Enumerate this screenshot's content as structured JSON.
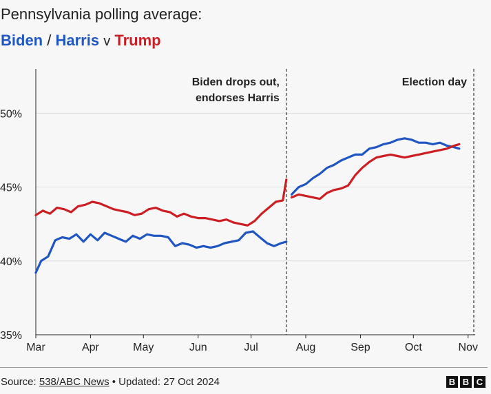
{
  "title": {
    "line1": "Pennsylvania polling average:",
    "biden": "Biden",
    "slash": "/",
    "harris": "Harris",
    "vs": "v",
    "trump": "Trump"
  },
  "footer": {
    "source_prefix": "Source: ",
    "source_link": "538/ABC News",
    "updated": " • Updated: 27 Oct 2024",
    "logo_letters": [
      "B",
      "B",
      "C"
    ]
  },
  "colors": {
    "biden_harris": "#1f56c2",
    "trump": "#cc1f24"
  },
  "chart_data": {
    "type": "line",
    "ylim": [
      35,
      53
    ],
    "xlim": [
      "2024-03-01",
      "2024-11-05"
    ],
    "y_ticks": [
      {
        "value": 35,
        "label": "35%"
      },
      {
        "value": 40,
        "label": "40%"
      },
      {
        "value": 45,
        "label": "45%"
      },
      {
        "value": 50,
        "label": "50%"
      }
    ],
    "x_ticks": [
      {
        "date": "2024-03-01",
        "label": "Mar"
      },
      {
        "date": "2024-04-01",
        "label": "Apr"
      },
      {
        "date": "2024-05-01",
        "label": "May"
      },
      {
        "date": "2024-06-01",
        "label": "Jun"
      },
      {
        "date": "2024-07-01",
        "label": "Jul"
      },
      {
        "date": "2024-08-01",
        "label": "Aug"
      },
      {
        "date": "2024-09-01",
        "label": "Sep"
      },
      {
        "date": "2024-10-01",
        "label": "Oct"
      },
      {
        "date": "2024-11-01",
        "label": "Nov"
      }
    ],
    "grid": true,
    "annotations": [
      {
        "date": "2024-07-21",
        "lines": [
          "Biden drops out,",
          "endorses Harris"
        ]
      },
      {
        "date": "2024-11-05",
        "lines": [
          "Election day"
        ]
      }
    ],
    "series": [
      {
        "color": "#1f56c2",
        "x": [
          "2024-03-01",
          "2024-03-04",
          "2024-03-08",
          "2024-03-12",
          "2024-03-16",
          "2024-03-20",
          "2024-03-24",
          "2024-03-28",
          "2024-04-01",
          "2024-04-05",
          "2024-04-09",
          "2024-04-13",
          "2024-04-17",
          "2024-04-21",
          "2024-04-25",
          "2024-04-29",
          "2024-05-03",
          "2024-05-07",
          "2024-05-11",
          "2024-05-15",
          "2024-05-19",
          "2024-05-23",
          "2024-05-27",
          "2024-05-31",
          "2024-06-04",
          "2024-06-08",
          "2024-06-12",
          "2024-06-16",
          "2024-06-20",
          "2024-06-24",
          "2024-06-28",
          "2024-07-02",
          "2024-07-06",
          "2024-07-10",
          "2024-07-14",
          "2024-07-18",
          "2024-07-21"
        ],
        "y": [
          39.2,
          40.0,
          40.3,
          41.4,
          41.6,
          41.5,
          41.8,
          41.3,
          41.8,
          41.4,
          41.9,
          41.7,
          41.5,
          41.3,
          41.7,
          41.5,
          41.8,
          41.7,
          41.7,
          41.6,
          41.0,
          41.2,
          41.1,
          40.9,
          41.0,
          40.9,
          41.0,
          41.2,
          41.3,
          41.4,
          41.9,
          42.0,
          41.6,
          41.2,
          41.0,
          41.2,
          41.3
        ]
      },
      {
        "color": "#1f56c2",
        "x": [
          "2024-07-24",
          "2024-07-28",
          "2024-08-01",
          "2024-08-05",
          "2024-08-09",
          "2024-08-13",
          "2024-08-17",
          "2024-08-21",
          "2024-08-25",
          "2024-08-29",
          "2024-09-02",
          "2024-09-06",
          "2024-09-10",
          "2024-09-14",
          "2024-09-18",
          "2024-09-22",
          "2024-09-26",
          "2024-09-30",
          "2024-10-04",
          "2024-10-08",
          "2024-10-12",
          "2024-10-16",
          "2024-10-20",
          "2024-10-24",
          "2024-10-27"
        ],
        "y": [
          44.5,
          45.0,
          45.2,
          45.6,
          45.9,
          46.3,
          46.5,
          46.8,
          47.0,
          47.2,
          47.2,
          47.6,
          47.7,
          47.9,
          48.0,
          48.2,
          48.3,
          48.2,
          48.0,
          48.0,
          47.9,
          48.0,
          47.8,
          47.7,
          47.6
        ]
      },
      {
        "color": "#cc1f24",
        "x": [
          "2024-03-01",
          "2024-03-05",
          "2024-03-09",
          "2024-03-13",
          "2024-03-17",
          "2024-03-21",
          "2024-03-25",
          "2024-03-29",
          "2024-04-02",
          "2024-04-06",
          "2024-04-10",
          "2024-04-14",
          "2024-04-18",
          "2024-04-22",
          "2024-04-26",
          "2024-04-30",
          "2024-05-04",
          "2024-05-08",
          "2024-05-12",
          "2024-05-16",
          "2024-05-20",
          "2024-05-24",
          "2024-05-28",
          "2024-06-01",
          "2024-06-05",
          "2024-06-09",
          "2024-06-13",
          "2024-06-17",
          "2024-06-21",
          "2024-06-25",
          "2024-06-29",
          "2024-07-03",
          "2024-07-07",
          "2024-07-11",
          "2024-07-15",
          "2024-07-19",
          "2024-07-21"
        ],
        "y": [
          43.1,
          43.4,
          43.2,
          43.6,
          43.5,
          43.3,
          43.7,
          43.8,
          44.0,
          43.9,
          43.7,
          43.5,
          43.4,
          43.3,
          43.1,
          43.2,
          43.5,
          43.6,
          43.4,
          43.3,
          43.0,
          43.2,
          43.0,
          42.9,
          42.9,
          42.8,
          42.7,
          42.8,
          42.6,
          42.5,
          42.4,
          42.7,
          43.2,
          43.6,
          44.0,
          44.1,
          45.5
        ]
      },
      {
        "color": "#cc1f24",
        "x": [
          "2024-07-24",
          "2024-07-28",
          "2024-08-01",
          "2024-08-05",
          "2024-08-09",
          "2024-08-13",
          "2024-08-17",
          "2024-08-21",
          "2024-08-25",
          "2024-08-29",
          "2024-09-02",
          "2024-09-06",
          "2024-09-10",
          "2024-09-14",
          "2024-09-18",
          "2024-09-22",
          "2024-09-26",
          "2024-09-30",
          "2024-10-04",
          "2024-10-08",
          "2024-10-12",
          "2024-10-16",
          "2024-10-20",
          "2024-10-24",
          "2024-10-27"
        ],
        "y": [
          44.3,
          44.5,
          44.4,
          44.3,
          44.2,
          44.6,
          44.8,
          44.9,
          45.1,
          45.8,
          46.3,
          46.7,
          47.0,
          47.1,
          47.2,
          47.1,
          47.0,
          47.1,
          47.2,
          47.3,
          47.4,
          47.5,
          47.6,
          47.8,
          47.9
        ]
      }
    ]
  }
}
